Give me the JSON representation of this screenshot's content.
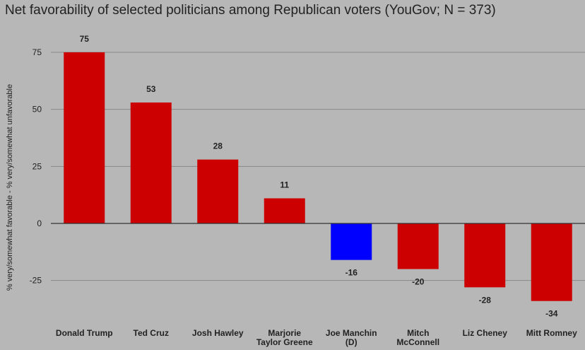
{
  "chart_data": {
    "type": "bar",
    "title": "Net favorability of selected politicians among Republican voters (YouGov; N = 373)",
    "xlabel": "",
    "ylabel": "% very/somewhat favorable - % very/somewhat unfavorable",
    "ylim": [
      -38,
      80
    ],
    "yticks": [
      75,
      50,
      25,
      0,
      -25
    ],
    "grid": true,
    "legend": "none",
    "categories": [
      [
        "Donald Trump"
      ],
      [
        "Ted Cruz"
      ],
      [
        "Josh Hawley"
      ],
      [
        "Marjorie",
        "Taylor Greene"
      ],
      [
        "Joe Manchin",
        "(D)"
      ],
      [
        "Mitch",
        "McConnell"
      ],
      [
        "Liz Cheney"
      ],
      [
        "Mitt Romney"
      ]
    ],
    "values": [
      75,
      53,
      28,
      11,
      -16,
      -20,
      -28,
      -34
    ],
    "colors": [
      "#cc0000",
      "#cc0000",
      "#cc0000",
      "#cc0000",
      "#0000ff",
      "#cc0000",
      "#cc0000",
      "#cc0000"
    ],
    "gridline_color": "#888888",
    "axis_color": "#333333"
  }
}
